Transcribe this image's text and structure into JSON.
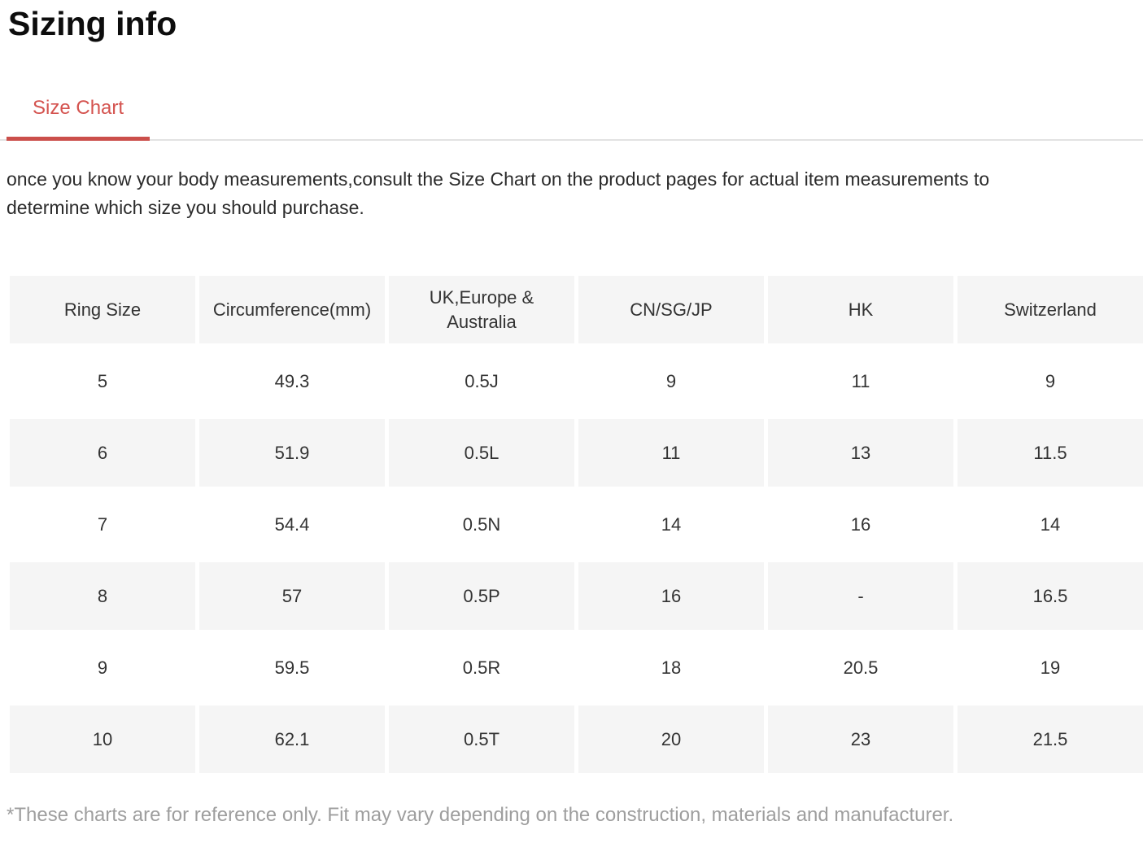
{
  "page": {
    "title": "Sizing info",
    "description": "once you know your body measurements,consult the Size Chart on the product pages for actual item measurements to determine which size you should purchase.",
    "footnote": "*These charts are for reference only. Fit may vary depending on the construction, materials and manufacturer."
  },
  "tabs": {
    "items": [
      {
        "label": "Size Chart",
        "active": true
      }
    ]
  },
  "colors": {
    "accent_red": "#d4534f",
    "tab_underline": "#cb4f4b",
    "cell_bg": "#f5f5f5",
    "divider": "#e2e2e2",
    "muted_text": "#9e9e9e",
    "body_text": "#2b2b2b"
  },
  "size_table": {
    "columns": [
      "Ring Size",
      "Circumference(mm)",
      "UK,Europe & Australia",
      "CN/SG/JP",
      "HK",
      "Switzerland"
    ],
    "rows": [
      [
        "5",
        "49.3",
        "0.5J",
        "9",
        "11",
        "9"
      ],
      [
        "6",
        "51.9",
        "0.5L",
        "11",
        "13",
        "11.5"
      ],
      [
        "7",
        "54.4",
        "0.5N",
        "14",
        "16",
        "14"
      ],
      [
        "8",
        "57",
        "0.5P",
        "16",
        "-",
        "16.5"
      ],
      [
        "9",
        "59.5",
        "0.5R",
        "18",
        "20.5",
        "19"
      ],
      [
        "10",
        "62.1",
        "0.5T",
        "20",
        "23",
        "21.5"
      ]
    ]
  }
}
